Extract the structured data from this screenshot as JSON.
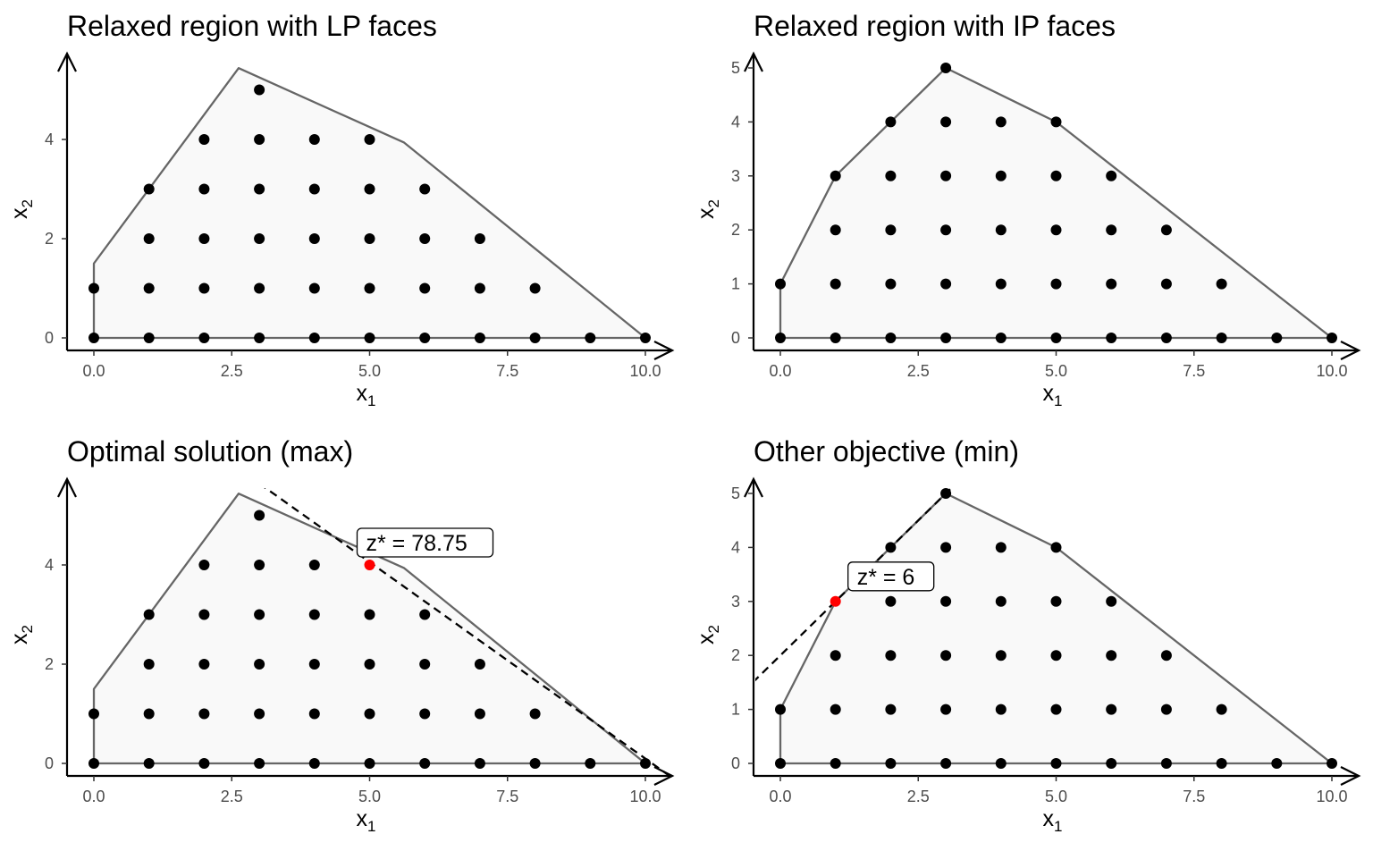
{
  "chart_data": [
    {
      "type": "scatter",
      "title": "Relaxed region with LP faces",
      "xlabel": "x",
      "xlabel_sub": "1",
      "ylabel": "x",
      "ylabel_sub": "2",
      "xlim": [
        -0.5,
        10.5
      ],
      "ylim": [
        -0.25,
        5.5
      ],
      "x_ticks": [
        0,
        2.5,
        5,
        7.5,
        10
      ],
      "x_tick_labels": [
        "0.0",
        "2.5",
        "5.0",
        "7.5",
        "10.0"
      ],
      "y_ticks": [
        0,
        2,
        4
      ],
      "y_tick_labels": [
        "0",
        "2",
        "4"
      ],
      "polygon": [
        [
          0,
          0
        ],
        [
          0,
          1.5
        ],
        [
          2.625,
          5.4375
        ],
        [
          5.625,
          3.9375
        ],
        [
          10,
          0
        ]
      ],
      "points": [
        [
          0,
          0
        ],
        [
          0,
          1
        ],
        [
          1,
          0
        ],
        [
          1,
          1
        ],
        [
          1,
          2
        ],
        [
          1,
          3
        ],
        [
          2,
          0
        ],
        [
          2,
          1
        ],
        [
          2,
          2
        ],
        [
          2,
          3
        ],
        [
          2,
          4
        ],
        [
          3,
          0
        ],
        [
          3,
          1
        ],
        [
          3,
          2
        ],
        [
          3,
          3
        ],
        [
          3,
          4
        ],
        [
          3,
          5
        ],
        [
          4,
          0
        ],
        [
          4,
          1
        ],
        [
          4,
          2
        ],
        [
          4,
          3
        ],
        [
          4,
          4
        ],
        [
          5,
          0
        ],
        [
          5,
          1
        ],
        [
          5,
          2
        ],
        [
          5,
          3
        ],
        [
          5,
          4
        ],
        [
          6,
          0
        ],
        [
          6,
          1
        ],
        [
          6,
          2
        ],
        [
          6,
          3
        ],
        [
          7,
          0
        ],
        [
          7,
          1
        ],
        [
          7,
          2
        ],
        [
          8,
          0
        ],
        [
          8,
          1
        ],
        [
          9,
          0
        ],
        [
          10,
          0
        ]
      ],
      "grid": false
    },
    {
      "type": "scatter",
      "title": "Relaxed region with IP faces",
      "xlabel": "x",
      "xlabel_sub": "1",
      "ylabel": "x",
      "ylabel_sub": "2",
      "xlim": [
        -0.5,
        10.5
      ],
      "ylim": [
        -0.25,
        5.25
      ],
      "x_ticks": [
        0,
        2.5,
        5,
        7.5,
        10
      ],
      "x_tick_labels": [
        "0.0",
        "2.5",
        "5.0",
        "7.5",
        "10.0"
      ],
      "y_ticks": [
        0,
        1,
        2,
        3,
        4,
        5
      ],
      "y_tick_labels": [
        "0",
        "1",
        "2",
        "3",
        "4",
        "5"
      ],
      "polygon": [
        [
          0,
          0
        ],
        [
          0,
          1
        ],
        [
          1,
          3
        ],
        [
          3,
          5
        ],
        [
          5,
          4
        ],
        [
          10,
          0
        ]
      ],
      "points": [
        [
          0,
          0
        ],
        [
          0,
          1
        ],
        [
          1,
          0
        ],
        [
          1,
          1
        ],
        [
          1,
          2
        ],
        [
          1,
          3
        ],
        [
          2,
          0
        ],
        [
          2,
          1
        ],
        [
          2,
          2
        ],
        [
          2,
          3
        ],
        [
          2,
          4
        ],
        [
          3,
          0
        ],
        [
          3,
          1
        ],
        [
          3,
          2
        ],
        [
          3,
          3
        ],
        [
          3,
          4
        ],
        [
          3,
          5
        ],
        [
          4,
          0
        ],
        [
          4,
          1
        ],
        [
          4,
          2
        ],
        [
          4,
          3
        ],
        [
          4,
          4
        ],
        [
          5,
          0
        ],
        [
          5,
          1
        ],
        [
          5,
          2
        ],
        [
          5,
          3
        ],
        [
          5,
          4
        ],
        [
          6,
          0
        ],
        [
          6,
          1
        ],
        [
          6,
          2
        ],
        [
          6,
          3
        ],
        [
          7,
          0
        ],
        [
          7,
          1
        ],
        [
          7,
          2
        ],
        [
          8,
          0
        ],
        [
          8,
          1
        ],
        [
          9,
          0
        ],
        [
          10,
          0
        ]
      ],
      "grid": false
    },
    {
      "type": "scatter",
      "title": "Optimal solution (max)",
      "xlabel": "x",
      "xlabel_sub": "1",
      "ylabel": "x",
      "ylabel_sub": "2",
      "xlim": [
        -0.5,
        10.5
      ],
      "ylim": [
        -0.25,
        5.5
      ],
      "x_ticks": [
        0,
        2.5,
        5,
        7.5,
        10
      ],
      "x_tick_labels": [
        "0.0",
        "2.5",
        "5.0",
        "7.5",
        "10.0"
      ],
      "y_ticks": [
        0,
        2,
        4
      ],
      "y_tick_labels": [
        "0",
        "2",
        "4"
      ],
      "polygon": [
        [
          0,
          0
        ],
        [
          0,
          1.5
        ],
        [
          2.625,
          5.4375
        ],
        [
          5.625,
          3.9375
        ],
        [
          10,
          0
        ]
      ],
      "points": [
        [
          0,
          0
        ],
        [
          0,
          1
        ],
        [
          1,
          0
        ],
        [
          1,
          1
        ],
        [
          1,
          2
        ],
        [
          1,
          3
        ],
        [
          2,
          0
        ],
        [
          2,
          1
        ],
        [
          2,
          2
        ],
        [
          2,
          3
        ],
        [
          2,
          4
        ],
        [
          3,
          0
        ],
        [
          3,
          1
        ],
        [
          3,
          2
        ],
        [
          3,
          3
        ],
        [
          3,
          4
        ],
        [
          3,
          5
        ],
        [
          4,
          0
        ],
        [
          4,
          1
        ],
        [
          4,
          2
        ],
        [
          4,
          3
        ],
        [
          4,
          4
        ],
        [
          5,
          0
        ],
        [
          5,
          1
        ],
        [
          5,
          2
        ],
        [
          5,
          3
        ],
        [
          6,
          0
        ],
        [
          6,
          1
        ],
        [
          6,
          2
        ],
        [
          6,
          3
        ],
        [
          7,
          0
        ],
        [
          7,
          1
        ],
        [
          7,
          2
        ],
        [
          8,
          0
        ],
        [
          8,
          1
        ],
        [
          9,
          0
        ],
        [
          10,
          0
        ]
      ],
      "optimum": [
        5,
        4
      ],
      "optimum_color": "#ff0000",
      "objective_line": [
        [
          2.8,
          5.8
        ],
        [
          10.5,
          -0.3
        ]
      ],
      "annotation": "z* = 78.75",
      "grid": false
    },
    {
      "type": "scatter",
      "title": "Other objective (min)",
      "xlabel": "x",
      "xlabel_sub": "1",
      "ylabel": "x",
      "ylabel_sub": "2",
      "xlim": [
        -0.5,
        10.5
      ],
      "ylim": [
        -0.25,
        5.25
      ],
      "x_ticks": [
        0,
        2.5,
        5,
        7.5,
        10
      ],
      "x_tick_labels": [
        "0.0",
        "2.5",
        "5.0",
        "7.5",
        "10.0"
      ],
      "y_ticks": [
        0,
        1,
        2,
        3,
        4,
        5
      ],
      "y_tick_labels": [
        "0",
        "1",
        "2",
        "3",
        "4",
        "5"
      ],
      "polygon": [
        [
          0,
          0
        ],
        [
          0,
          1
        ],
        [
          1,
          3
        ],
        [
          3,
          5
        ],
        [
          5,
          4
        ],
        [
          10,
          0
        ]
      ],
      "points": [
        [
          0,
          0
        ],
        [
          0,
          1
        ],
        [
          1,
          0
        ],
        [
          1,
          1
        ],
        [
          1,
          2
        ],
        [
          2,
          0
        ],
        [
          2,
          1
        ],
        [
          2,
          2
        ],
        [
          2,
          3
        ],
        [
          2,
          4
        ],
        [
          3,
          0
        ],
        [
          3,
          1
        ],
        [
          3,
          2
        ],
        [
          3,
          3
        ],
        [
          3,
          4
        ],
        [
          3,
          5
        ],
        [
          4,
          0
        ],
        [
          4,
          1
        ],
        [
          4,
          2
        ],
        [
          4,
          3
        ],
        [
          4,
          4
        ],
        [
          5,
          0
        ],
        [
          5,
          1
        ],
        [
          5,
          2
        ],
        [
          5,
          3
        ],
        [
          5,
          4
        ],
        [
          6,
          0
        ],
        [
          6,
          1
        ],
        [
          6,
          2
        ],
        [
          6,
          3
        ],
        [
          7,
          0
        ],
        [
          7,
          1
        ],
        [
          7,
          2
        ],
        [
          8,
          0
        ],
        [
          8,
          1
        ],
        [
          9,
          0
        ],
        [
          10,
          0
        ]
      ],
      "optimum": [
        1,
        3
      ],
      "optimum_color": "#ff0000",
      "objective_line": [
        [
          -0.5,
          1.5
        ],
        [
          3.25,
          5.25
        ]
      ],
      "annotation": "z* = 6",
      "grid": false
    }
  ],
  "colors": {
    "region_fill": "#f9f9f9",
    "region_edge": "#666666",
    "point": "#000000",
    "objective_line": "#000000"
  }
}
